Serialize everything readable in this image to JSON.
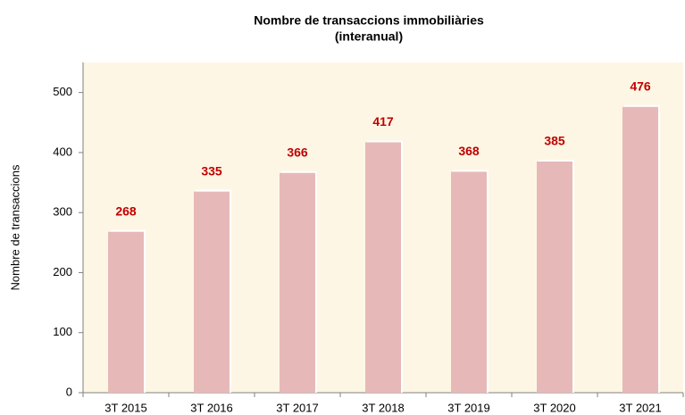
{
  "chart_data": {
    "type": "bar",
    "title": "Nombre de transaccions immobiliàries",
    "subtitle": "(interanual)",
    "y_label": "Nombre de transaccions",
    "categories": [
      "3T 2015",
      "3T 2016",
      "3T 2017",
      "3T 2018",
      "3T 2019",
      "3T 2020",
      "3T 2021"
    ],
    "values": [
      268,
      335,
      366,
      417,
      368,
      385,
      476
    ],
    "color": "#e6b9b8",
    "label_color": "#c00000",
    "background": "#fef6e4",
    "ylim": [
      0,
      550
    ],
    "yticks": [
      0,
      100,
      200,
      300,
      400,
      500
    ],
    "grid": false
  }
}
